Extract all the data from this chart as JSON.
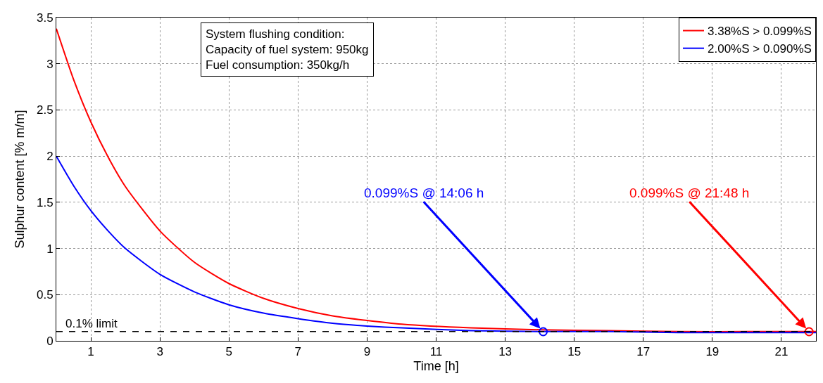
{
  "chart_data": {
    "type": "line",
    "xlabel": "Time [h]",
    "ylabel": "Sulphur content [% m/m]",
    "x": [
      0,
      0.5,
      1,
      1.5,
      2,
      3,
      4,
      5,
      6,
      7,
      8,
      9,
      10,
      12,
      14,
      16,
      18,
      20,
      22
    ],
    "series": [
      {
        "name": "3.38%S > 0.099%S",
        "color": "#ff0000",
        "values": [
          3.38,
          2.83,
          2.37,
          1.99,
          1.67,
          1.19,
          0.85,
          0.62,
          0.46,
          0.35,
          0.27,
          0.22,
          0.18,
          0.14,
          0.12,
          0.11,
          0.1,
          0.1,
          0.1
        ]
      },
      {
        "name": "2.00%S > 0.090%S",
        "color": "#0000ff",
        "values": [
          2.0,
          1.68,
          1.41,
          1.19,
          1.0,
          0.72,
          0.53,
          0.39,
          0.3,
          0.24,
          0.19,
          0.16,
          0.14,
          0.11,
          0.1,
          0.1,
          0.09,
          0.09,
          0.09
        ]
      },
      {
        "type": "scatter",
        "marker": "circle",
        "color": "#0000ff",
        "x": [
          14.1
        ],
        "values": [
          0.099
        ]
      },
      {
        "type": "scatter",
        "marker": "circle",
        "color": "#ff0000",
        "x": [
          21.8
        ],
        "values": [
          0.099
        ]
      }
    ],
    "annotations": [
      "System flushing condition:\nCapacity of fuel system: 950kg\nFuel consumption: 350kg/h",
      {
        "text": "0.099%S @ 14:06 h",
        "x": 14.1,
        "y": 0.099
      },
      {
        "text": "0.099%S @ 21:48 h",
        "x": 21.8,
        "y": 0.099
      }
    ],
    "ref_lines": [
      {
        "axis": "y",
        "value": 0.1,
        "label": "0.1% limit",
        "color": "#000000",
        "line_style": "dashed"
      }
    ],
    "xlim": [
      0,
      22
    ],
    "xticks": [
      1,
      3,
      5,
      7,
      9,
      11,
      13,
      15,
      17,
      19,
      21
    ],
    "ylim": [
      0,
      3.5
    ],
    "yticks": [
      0,
      0.5,
      1,
      1.5,
      2,
      2.5,
      3,
      3.5
    ],
    "grid": true,
    "legend": "top right",
    "marker": "none",
    "line_style": "solid"
  }
}
